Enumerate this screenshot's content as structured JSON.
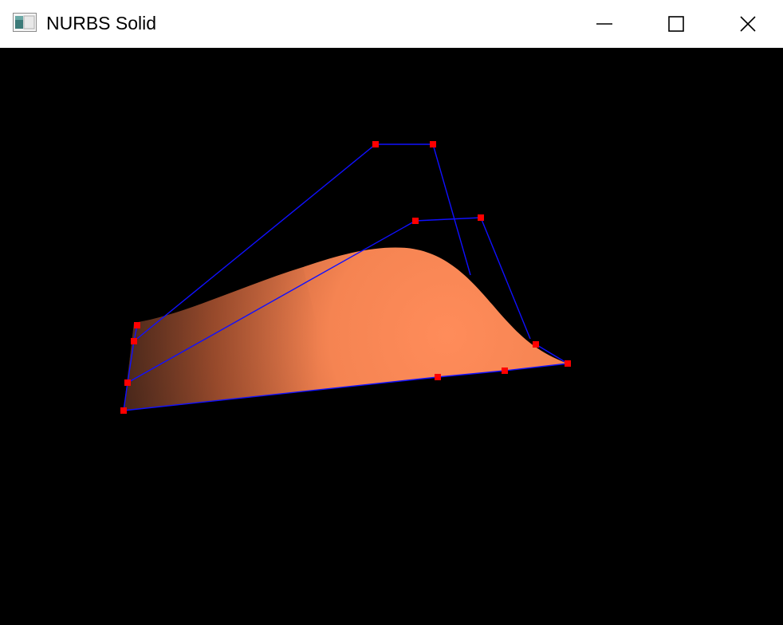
{
  "window": {
    "title": "NURBS Solid",
    "icon": "app-window-icon",
    "buttons": {
      "minimize": "minimize-icon",
      "maximize": "maximize-icon",
      "close": "close-icon"
    }
  },
  "scene": {
    "background_color": "#000000",
    "surface_color": "#ff8c5a",
    "surface_shadow_color": "#7a3a22",
    "control_net_color": "#0000ff",
    "control_point_color": "#ff0000"
  }
}
